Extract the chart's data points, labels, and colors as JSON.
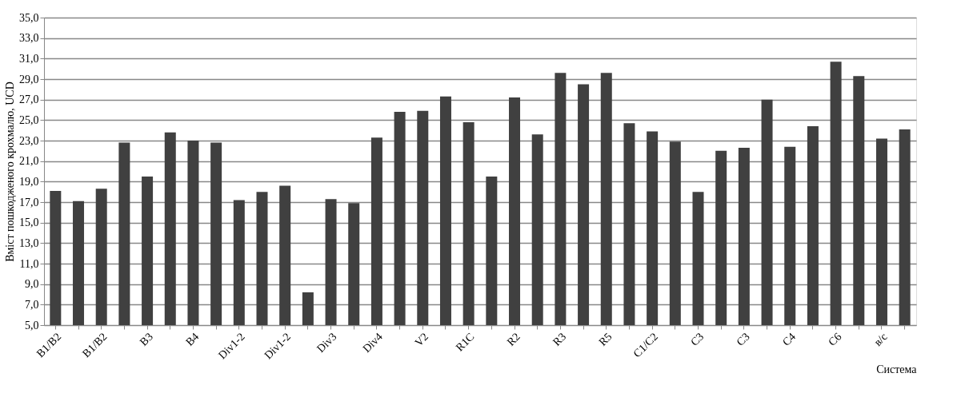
{
  "chart_data": {
    "type": "bar",
    "xlabel": "Система",
    "ylabel": "Вміст пошкодженого крохмалю, UCD",
    "categories": [
      "B1/B2",
      null,
      "B1/B2",
      null,
      "B3",
      null,
      "B4",
      null,
      "Div1-2",
      null,
      "Div1-2",
      null,
      "Div3",
      null,
      "Div4",
      null,
      "V2",
      null,
      "R1C",
      null,
      "R2",
      null,
      "R3",
      null,
      "R5",
      null,
      "C1/C2",
      null,
      "C3",
      null,
      "C3",
      null,
      "C4",
      null,
      "C6",
      null,
      "в/с",
      null
    ],
    "values": [
      18.1,
      17.1,
      18.3,
      22.8,
      19.5,
      23.8,
      23.0,
      22.8,
      17.2,
      18.0,
      18.6,
      8.2,
      17.3,
      16.9,
      23.3,
      25.8,
      25.9,
      27.3,
      24.8,
      19.5,
      27.2,
      23.6,
      29.6,
      28.5,
      29.6,
      24.7,
      23.9,
      22.9,
      18.0,
      22.0,
      22.3,
      27.0,
      22.4,
      24.4,
      30.7,
      29.3,
      23.2,
      24.1
    ],
    "color": "#404040",
    "ylim": [
      5,
      35
    ],
    "yticks": [
      {
        "value": 5,
        "label": "5,0"
      },
      {
        "value": 7,
        "label": "7,0"
      },
      {
        "value": 9,
        "label": "9,0"
      },
      {
        "value": 11,
        "label": "11,0"
      },
      {
        "value": 13,
        "label": "13,0"
      },
      {
        "value": 15,
        "label": "15,0"
      },
      {
        "value": 17,
        "label": "17,0"
      },
      {
        "value": 19,
        "label": "19,0"
      },
      {
        "value": 21,
        "label": "21,0"
      },
      {
        "value": 23,
        "label": "23,0"
      },
      {
        "value": 25,
        "label": "25,0"
      },
      {
        "value": 27,
        "label": "27,0"
      },
      {
        "value": 29,
        "label": "29,0"
      },
      {
        "value": 31,
        "label": "31,0"
      },
      {
        "value": 33,
        "label": "33,0"
      },
      {
        "value": 35,
        "label": "35,0"
      }
    ],
    "grid": "y"
  }
}
